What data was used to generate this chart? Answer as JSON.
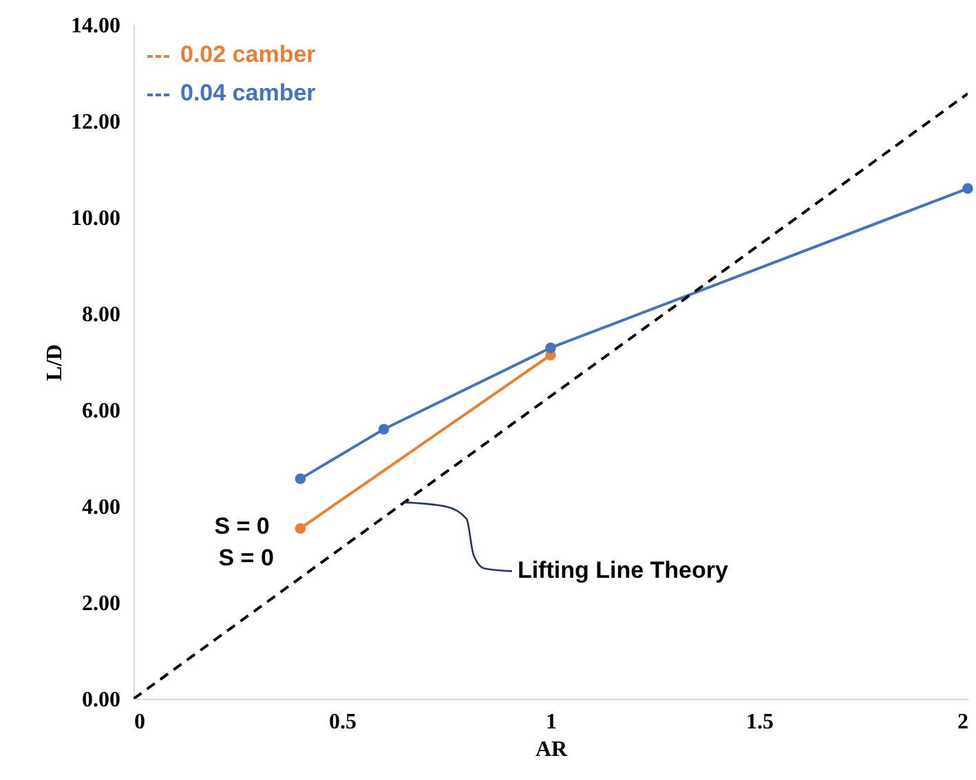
{
  "chart_data": {
    "type": "line",
    "xlabel": "AR",
    "ylabel": "L/D",
    "xlim": [
      0,
      2
    ],
    "xticks": [
      0,
      0.5,
      1,
      1.5,
      2
    ],
    "ylim": [
      0,
      14
    ],
    "yticks": [
      {
        "value": 0,
        "label": "0.00"
      },
      {
        "value": 2,
        "label": "2.00"
      },
      {
        "value": 4,
        "label": "4.00"
      },
      {
        "value": 6,
        "label": "6.00"
      },
      {
        "value": 8,
        "label": "8.00"
      },
      {
        "value": 10,
        "label": "10.00"
      },
      {
        "value": 12,
        "label": "12.00"
      },
      {
        "value": 14,
        "label": "14.00"
      }
    ],
    "grid": false,
    "legend": "top left",
    "series": [
      {
        "name": "0.02 camber",
        "color": "#ed7d31",
        "x": [
          0.4,
          1
        ],
        "values": [
          3.54,
          7.14
        ],
        "marker": "circle",
        "line_style": "solid"
      },
      {
        "name": "0.04 camber",
        "color": "#4472c4",
        "x": [
          0.4,
          0.6,
          1,
          2
        ],
        "values": [
          4.57,
          5.6,
          7.29,
          10.6
        ],
        "marker": "circle",
        "line_style": "solid"
      },
      {
        "color": "#000000",
        "x": [
          0,
          2
        ],
        "values": [
          0,
          12.57
        ],
        "marker": "none",
        "line_style": "dashed"
      }
    ],
    "annotations": [
      "S = 0",
      "S = 0",
      {
        "text": "Lifting Line Theory",
        "x": 0.65,
        "y": 4.08
      }
    ]
  }
}
